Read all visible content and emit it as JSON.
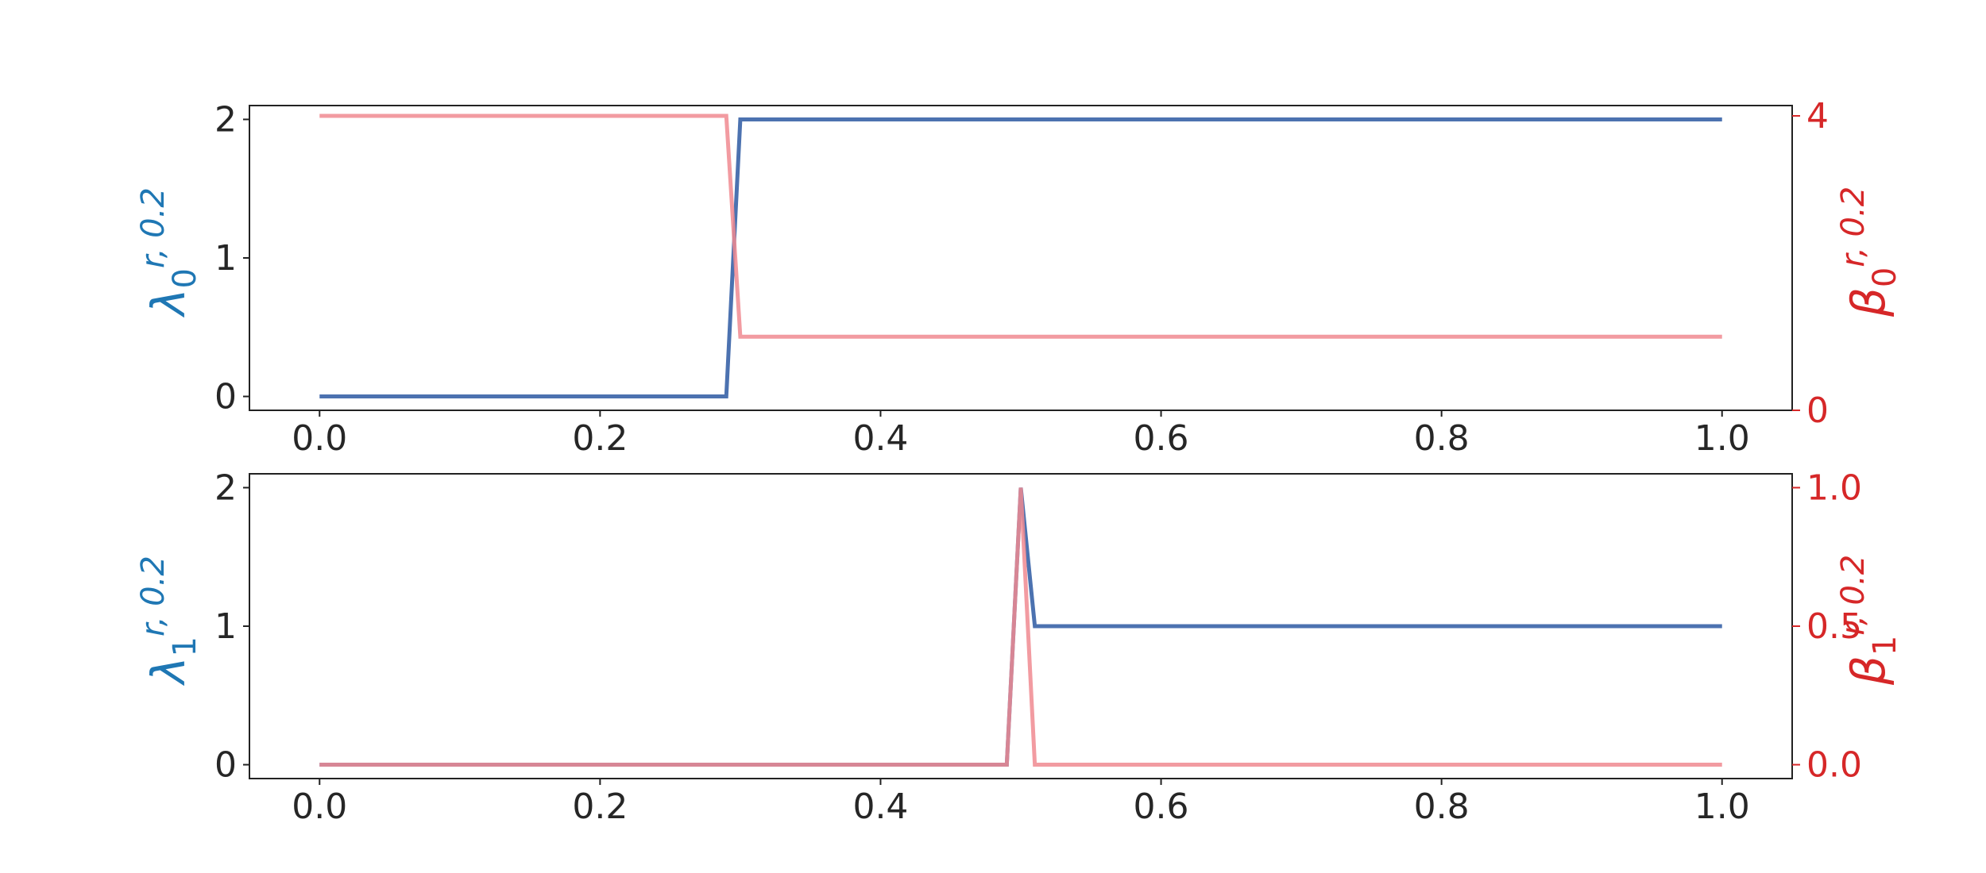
{
  "chart_data": [
    {
      "type": "line",
      "x": [
        0,
        0.29,
        0.3,
        1.0
      ],
      "series": [
        {
          "color": "#4c72b0",
          "values": [
            0,
            0,
            2,
            2
          ]
        },
        {
          "color": "#f08a90",
          "axis": "y2",
          "values": [
            4,
            4,
            1,
            1
          ]
        }
      ],
      "ylabel": {
        "base": "λ",
        "sub": "0",
        "sup": "r, 0.2",
        "color": "#1f77b4"
      },
      "y2label": {
        "base": "β",
        "sub": "0",
        "sup": "r, 0.2",
        "color": "#d62728"
      },
      "xlim": [
        -0.05,
        1.05
      ],
      "xticks": [
        {
          "value": 0,
          "label": "0.0"
        },
        {
          "value": 0.2,
          "label": "0.2"
        },
        {
          "value": 0.4,
          "label": "0.4"
        },
        {
          "value": 0.6,
          "label": "0.6"
        },
        {
          "value": 0.8,
          "label": "0.8"
        },
        {
          "value": 1.0,
          "label": "1.0"
        }
      ],
      "ylim": [
        -0.1,
        2.1
      ],
      "yticks": [
        0,
        1,
        2
      ],
      "y2lim": [
        0,
        4.14
      ],
      "y2ticks": [
        0,
        4
      ]
    },
    {
      "type": "line",
      "x": [
        0,
        0.49,
        0.5,
        0.51,
        1.0
      ],
      "series": [
        {
          "color": "#4c72b0",
          "values": [
            0,
            0,
            2,
            1,
            1
          ]
        },
        {
          "color": "#f08a90",
          "axis": "y2",
          "values": [
            0,
            0,
            1,
            0,
            0
          ]
        }
      ],
      "ylabel": {
        "base": "λ",
        "sub": "1",
        "sup": "r, 0.2",
        "color": "#1f77b4"
      },
      "y2label": {
        "base": "β",
        "sub": "1",
        "sup": "r, 0.2",
        "color": "#d62728"
      },
      "xlim": [
        -0.05,
        1.05
      ],
      "xticks": [
        {
          "value": 0,
          "label": "0.0"
        },
        {
          "value": 0.2,
          "label": "0.2"
        },
        {
          "value": 0.4,
          "label": "0.4"
        },
        {
          "value": 0.6,
          "label": "0.6"
        },
        {
          "value": 0.8,
          "label": "0.8"
        },
        {
          "value": 1.0,
          "label": "1.0"
        }
      ],
      "ylim": [
        -0.1,
        2.1
      ],
      "yticks": [
        0,
        1,
        2
      ],
      "y2lim": [
        -0.05,
        1.05
      ],
      "y2ticks": [
        {
          "value": 0,
          "label": "0.0"
        },
        {
          "value": 0.5,
          "label": "0.5"
        },
        {
          "value": 1.0,
          "label": "1.0"
        }
      ]
    }
  ]
}
